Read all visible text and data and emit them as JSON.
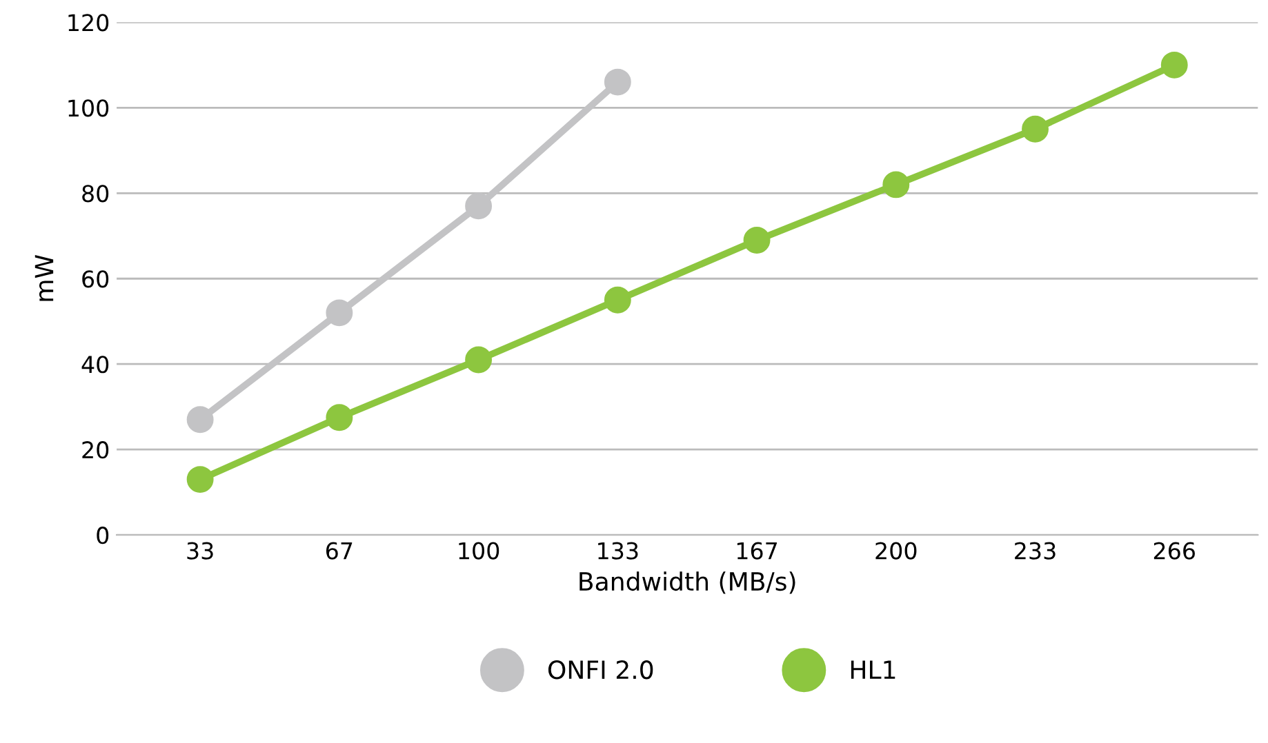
{
  "chart_data": {
    "type": "line",
    "xlabel": "Bandwidth (MB/s)",
    "ylabel": "mW",
    "categories": [
      "33",
      "67",
      "100",
      "133",
      "167",
      "200",
      "233",
      "266"
    ],
    "series": [
      {
        "name": "ONFI 2.0",
        "color": "#c3c3c5",
        "values": [
          27,
          52,
          77,
          106,
          null,
          null,
          null,
          null
        ]
      },
      {
        "name": "HL1",
        "color": "#8dc63f",
        "values": [
          13,
          27.5,
          41,
          55,
          69,
          82,
          95,
          110
        ]
      }
    ],
    "ylim": [
      0,
      120
    ],
    "yticks": [
      0,
      20,
      40,
      60,
      80,
      100,
      120
    ],
    "grid": "y",
    "legend": "bottom",
    "marker": "circle",
    "line_style": "solid"
  }
}
